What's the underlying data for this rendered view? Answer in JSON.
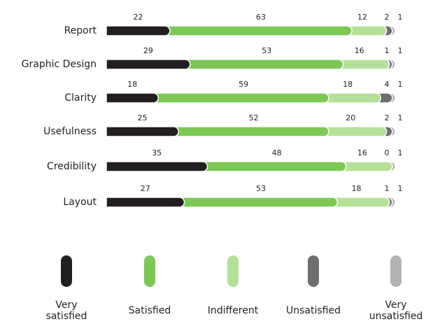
{
  "chart_data": {
    "type": "stacked_bar_horizontal",
    "categories": [
      "Report",
      "Graphic Design",
      "Clarity",
      "Usefulness",
      "Credibility",
      "Layout"
    ],
    "series": [
      {
        "name": "Very satisfied",
        "color": "#231f20",
        "values": [
          22,
          29,
          18,
          25,
          35,
          27
        ]
      },
      {
        "name": "Satisfied",
        "color": "#7dc855",
        "values": [
          63,
          53,
          59,
          52,
          48,
          53
        ]
      },
      {
        "name": "Indifferent",
        "color": "#b5e09a",
        "values": [
          12,
          16,
          18,
          20,
          16,
          18
        ]
      },
      {
        "name": "Unsatisfied",
        "color": "#6d6e70",
        "values": [
          2,
          1,
          4,
          2,
          0,
          1
        ]
      },
      {
        "name": "Very unsatisfied",
        "color": "#b3b3b3",
        "values": [
          1,
          1,
          1,
          1,
          1,
          1
        ]
      }
    ],
    "xlim": [
      0,
      100
    ]
  }
}
